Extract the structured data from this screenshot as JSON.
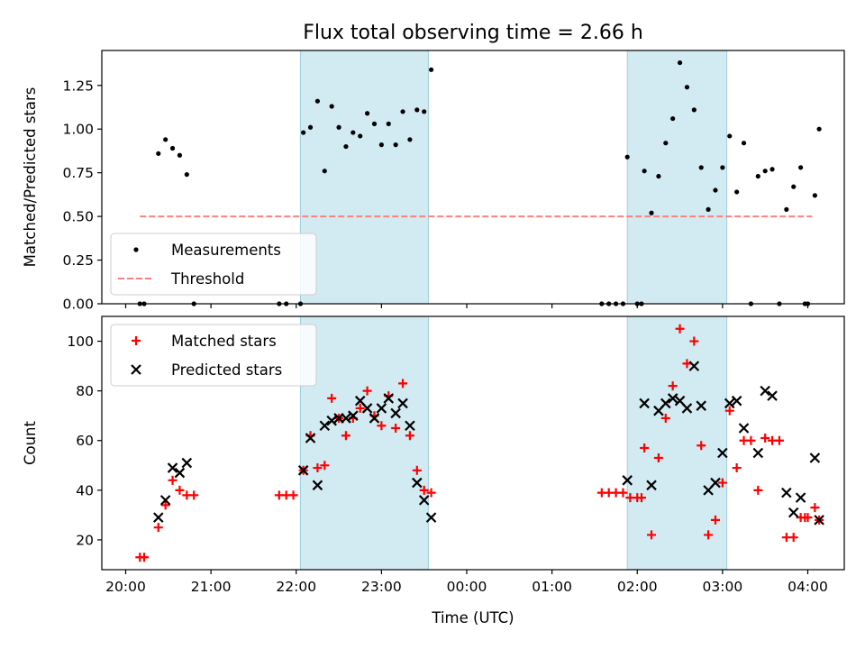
{
  "chart_data": [
    {
      "type": "scatter",
      "title": "Flux total observing time = 2.66 h",
      "xlabel": "",
      "ylabel": "Matched/Predicted stars",
      "xlim": [
        "20:00",
        "04:00"
      ],
      "ylim": [
        0,
        1.45
      ],
      "yticks": [
        0.0,
        0.25,
        0.5,
        0.75,
        1.0,
        1.25
      ],
      "ytick_labels": [
        "0.00",
        "0.25",
        "0.50",
        "0.75",
        "1.00",
        "1.25"
      ],
      "legend_position": "lower-left",
      "grid": false,
      "shaded_intervals": [
        {
          "start": "22:03",
          "end": "23:33",
          "color": "#add8e6"
        },
        {
          "start": "01:53",
          "end": "03:03",
          "color": "#add8e6"
        }
      ],
      "threshold": {
        "name": "Threshold",
        "value": 0.5,
        "x_start": "20:10",
        "x_end": "04:03",
        "color": "#ff7f7f"
      },
      "series": [
        {
          "name": "Measurements",
          "marker": "dot",
          "color": "#000000",
          "points": [
            [
              "20:10",
              0
            ],
            [
              "20:13",
              0
            ],
            [
              "20:23",
              0.86
            ],
            [
              "20:28",
              0.94
            ],
            [
              "20:33",
              0.89
            ],
            [
              "20:38",
              0.85
            ],
            [
              "20:43",
              0.74
            ],
            [
              "20:48",
              0
            ],
            [
              "21:48",
              0
            ],
            [
              "21:53",
              0
            ],
            [
              "22:03",
              0
            ],
            [
              "22:05",
              0.98
            ],
            [
              "22:10",
              1.01
            ],
            [
              "22:15",
              1.16
            ],
            [
              "22:20",
              0.76
            ],
            [
              "22:25",
              1.13
            ],
            [
              "22:30",
              1.01
            ],
            [
              "22:35",
              0.9
            ],
            [
              "22:40",
              0.98
            ],
            [
              "22:45",
              0.96
            ],
            [
              "22:50",
              1.09
            ],
            [
              "22:55",
              1.03
            ],
            [
              "23:00",
              0.91
            ],
            [
              "23:05",
              1.03
            ],
            [
              "23:10",
              0.91
            ],
            [
              "23:15",
              1.1
            ],
            [
              "23:20",
              0.94
            ],
            [
              "23:25",
              1.11
            ],
            [
              "23:30",
              1.1
            ],
            [
              "23:35",
              1.34
            ],
            [
              "01:35",
              0
            ],
            [
              "01:40",
              0
            ],
            [
              "01:45",
              0
            ],
            [
              "01:50",
              0
            ],
            [
              "01:53",
              0.84
            ],
            [
              "02:00",
              0
            ],
            [
              "02:03",
              0
            ],
            [
              "02:05",
              0.76
            ],
            [
              "02:10",
              0.52
            ],
            [
              "02:15",
              0.73
            ],
            [
              "02:20",
              0.92
            ],
            [
              "02:25",
              1.06
            ],
            [
              "02:30",
              1.38
            ],
            [
              "02:35",
              1.24
            ],
            [
              "02:40",
              1.11
            ],
            [
              "02:45",
              0.78
            ],
            [
              "02:50",
              0.54
            ],
            [
              "02:55",
              0.65
            ],
            [
              "03:00",
              0.78
            ],
            [
              "03:05",
              0.96
            ],
            [
              "03:10",
              0.64
            ],
            [
              "03:15",
              0.92
            ],
            [
              "03:20",
              0
            ],
            [
              "03:25",
              0.73
            ],
            [
              "03:30",
              0.76
            ],
            [
              "03:35",
              0.77
            ],
            [
              "03:40",
              0
            ],
            [
              "03:45",
              0.54
            ],
            [
              "03:50",
              0.67
            ],
            [
              "03:55",
              0.78
            ],
            [
              "03:58",
              0
            ],
            [
              "04:00",
              0
            ],
            [
              "04:05",
              0.62
            ],
            [
              "04:08",
              1.0
            ]
          ]
        }
      ]
    },
    {
      "type": "scatter",
      "title": "",
      "xlabel": "Time (UTC)",
      "ylabel": "Count",
      "xlim": [
        "20:00",
        "04:00"
      ],
      "xticks": [
        "20:00",
        "21:00",
        "22:00",
        "23:00",
        "00:00",
        "01:00",
        "02:00",
        "03:00",
        "04:00"
      ],
      "ylim": [
        8,
        110
      ],
      "yticks": [
        20,
        40,
        60,
        80,
        100
      ],
      "ytick_labels": [
        "20",
        "40",
        "60",
        "80",
        "100"
      ],
      "legend_position": "upper-left",
      "grid": false,
      "shaded_intervals": [
        {
          "start": "22:03",
          "end": "23:33",
          "color": "#add8e6"
        },
        {
          "start": "01:53",
          "end": "03:03",
          "color": "#add8e6"
        }
      ],
      "series": [
        {
          "name": "Matched stars",
          "marker": "plus",
          "color": "#ff0000",
          "points": [
            [
              "20:10",
              13
            ],
            [
              "20:13",
              13
            ],
            [
              "20:23",
              25
            ],
            [
              "20:28",
              34
            ],
            [
              "20:33",
              44
            ],
            [
              "20:38",
              40
            ],
            [
              "20:43",
              38
            ],
            [
              "20:48",
              38
            ],
            [
              "21:48",
              38
            ],
            [
              "21:53",
              38
            ],
            [
              "21:58",
              38
            ],
            [
              "22:05",
              48
            ],
            [
              "22:10",
              62
            ],
            [
              "22:15",
              49
            ],
            [
              "22:20",
              50
            ],
            [
              "22:25",
              77
            ],
            [
              "22:30",
              69
            ],
            [
              "22:35",
              62
            ],
            [
              "22:40",
              69
            ],
            [
              "22:45",
              73
            ],
            [
              "22:50",
              80
            ],
            [
              "22:55",
              70
            ],
            [
              "23:00",
              66
            ],
            [
              "23:05",
              78
            ],
            [
              "23:10",
              65
            ],
            [
              "23:15",
              83
            ],
            [
              "23:20",
              62
            ],
            [
              "23:25",
              48
            ],
            [
              "23:30",
              40
            ],
            [
              "23:35",
              39
            ],
            [
              "01:35",
              39
            ],
            [
              "01:40",
              39
            ],
            [
              "01:45",
              39
            ],
            [
              "01:50",
              39
            ],
            [
              "01:55",
              37
            ],
            [
              "02:00",
              37
            ],
            [
              "02:03",
              37
            ],
            [
              "02:05",
              57
            ],
            [
              "02:10",
              22
            ],
            [
              "02:15",
              53
            ],
            [
              "02:20",
              69
            ],
            [
              "02:25",
              82
            ],
            [
              "02:30",
              105
            ],
            [
              "02:35",
              91
            ],
            [
              "02:40",
              100
            ],
            [
              "02:45",
              58
            ],
            [
              "02:50",
              22
            ],
            [
              "02:55",
              28
            ],
            [
              "03:00",
              43
            ],
            [
              "03:05",
              72
            ],
            [
              "03:10",
              49
            ],
            [
              "03:15",
              60
            ],
            [
              "03:20",
              60
            ],
            [
              "03:25",
              40
            ],
            [
              "03:30",
              61
            ],
            [
              "03:35",
              60
            ],
            [
              "03:40",
              60
            ],
            [
              "03:45",
              21
            ],
            [
              "03:50",
              21
            ],
            [
              "03:55",
              29
            ],
            [
              "03:58",
              29
            ],
            [
              "04:00",
              29
            ],
            [
              "04:05",
              33
            ],
            [
              "04:08",
              28
            ]
          ]
        },
        {
          "name": "Predicted stars",
          "marker": "x",
          "color": "#000000",
          "points": [
            [
              "20:23",
              29
            ],
            [
              "20:28",
              36
            ],
            [
              "20:33",
              49
            ],
            [
              "20:38",
              47
            ],
            [
              "20:43",
              51
            ],
            [
              "22:05",
              48
            ],
            [
              "22:10",
              61
            ],
            [
              "22:15",
              42
            ],
            [
              "22:20",
              66
            ],
            [
              "22:25",
              68
            ],
            [
              "22:30",
              69
            ],
            [
              "22:35",
              69
            ],
            [
              "22:40",
              70
            ],
            [
              "22:45",
              76
            ],
            [
              "22:50",
              73
            ],
            [
              "22:55",
              69
            ],
            [
              "23:00",
              73
            ],
            [
              "23:05",
              77
            ],
            [
              "23:10",
              71
            ],
            [
              "23:15",
              75
            ],
            [
              "23:20",
              66
            ],
            [
              "23:25",
              43
            ],
            [
              "23:30",
              36
            ],
            [
              "23:35",
              29
            ],
            [
              "01:53",
              44
            ],
            [
              "02:05",
              75
            ],
            [
              "02:10",
              42
            ],
            [
              "02:15",
              72
            ],
            [
              "02:20",
              75
            ],
            [
              "02:25",
              77
            ],
            [
              "02:30",
              76
            ],
            [
              "02:35",
              73
            ],
            [
              "02:40",
              90
            ],
            [
              "02:45",
              74
            ],
            [
              "02:50",
              40
            ],
            [
              "02:55",
              43
            ],
            [
              "03:00",
              55
            ],
            [
              "03:05",
              75
            ],
            [
              "03:10",
              76
            ],
            [
              "03:15",
              65
            ],
            [
              "03:25",
              55
            ],
            [
              "03:30",
              80
            ],
            [
              "03:35",
              78
            ],
            [
              "03:45",
              39
            ],
            [
              "03:50",
              31
            ],
            [
              "03:55",
              37
            ],
            [
              "04:05",
              53
            ],
            [
              "04:08",
              28
            ]
          ]
        }
      ]
    }
  ]
}
